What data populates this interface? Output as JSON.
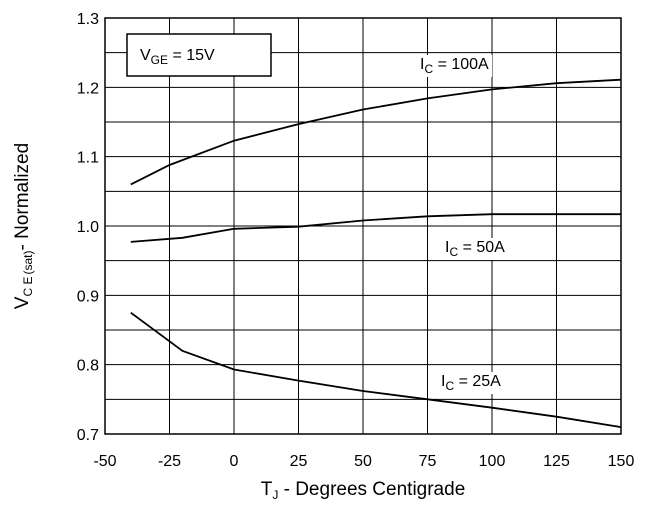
{
  "chart_data": {
    "type": "line",
    "xlabel": {
      "main": "T",
      "sub": "J",
      "rest": " - Degrees Centigrade"
    },
    "ylabel": {
      "main": "V",
      "sub1": "C E",
      "sub2": "(sat)",
      "rest": "- Normalized"
    },
    "xlim": [
      -50,
      150
    ],
    "ylim": [
      0.7,
      1.3
    ],
    "x_ticks": [
      -50,
      -25,
      0,
      25,
      50,
      75,
      100,
      125,
      150
    ],
    "x_tick_labels": [
      "-50",
      "-25",
      "0",
      "25",
      "50",
      "75",
      "100",
      "125",
      "150"
    ],
    "y_ticks": [
      0.7,
      0.8,
      0.9,
      1.0,
      1.1,
      1.2,
      1.3
    ],
    "y_tick_labels": [
      "0.7",
      "0.8",
      "0.9",
      "1.0",
      "1.1",
      "1.2",
      "1.3"
    ],
    "grid": true,
    "condition_box": {
      "main": "V",
      "sub": "GE",
      "rest": " = 15V"
    },
    "series": [
      {
        "label": {
          "main": "I",
          "sub": "C",
          "rest": " = 100A"
        },
        "x": [
          -40,
          -25,
          -20,
          0,
          25,
          50,
          75,
          100,
          125,
          150
        ],
        "y": [
          1.06,
          1.088,
          1.095,
          1.123,
          1.147,
          1.168,
          1.184,
          1.197,
          1.206,
          1.211
        ]
      },
      {
        "label": {
          "main": "I",
          "sub": "C",
          "rest": " = 50A"
        },
        "x": [
          -40,
          -20,
          0,
          25,
          50,
          75,
          100,
          125,
          150
        ],
        "y": [
          0.977,
          0.983,
          0.996,
          0.999,
          1.008,
          1.014,
          1.017,
          1.017,
          1.017
        ]
      },
      {
        "label": {
          "main": "I",
          "sub": "C",
          "rest": " = 25A"
        },
        "x": [
          -40,
          -20,
          0,
          25,
          50,
          75,
          100,
          125,
          150
        ],
        "y": [
          0.875,
          0.82,
          0.793,
          0.777,
          0.762,
          0.75,
          0.738,
          0.725,
          0.71
        ]
      }
    ]
  }
}
